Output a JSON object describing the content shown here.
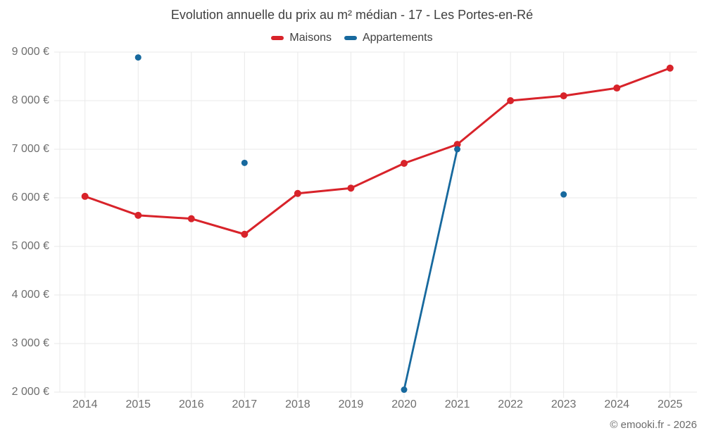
{
  "chart_data": {
    "type": "line",
    "title": "Evolution annuelle du prix au m² médian - 17 - Les Portes-en-Ré",
    "categories": [
      "2014",
      "2015",
      "2016",
      "2017",
      "2018",
      "2019",
      "2020",
      "2021",
      "2022",
      "2023",
      "2024",
      "2025"
    ],
    "series": [
      {
        "name": "Maisons",
        "color": "#d8232a",
        "values": [
          6030,
          5640,
          5570,
          5250,
          6090,
          6200,
          6710,
          7100,
          8000,
          8100,
          8260,
          8670
        ]
      },
      {
        "name": "Appartements",
        "color": "#17699e",
        "values": [
          null,
          8890,
          null,
          6720,
          null,
          null,
          2050,
          7000,
          null,
          6070,
          null,
          null
        ]
      }
    ],
    "xlabel": "",
    "ylabel": "",
    "ylim": [
      2000,
      9000
    ],
    "ytick_step": 1000,
    "ytick_labels": [
      "2 000 €",
      "3 000 €",
      "4 000 €",
      "5 000 €",
      "6 000 €",
      "7 000 €",
      "8 000 €",
      "9 000 €"
    ],
    "grid": true,
    "legend_position": "top",
    "footer": "© emooki.fr - 2026"
  },
  "colors": {
    "grid": "#e9e9e9",
    "axis_text": "#6e6e6e",
    "title_text": "#3f3f3f",
    "footer_text": "#6b6b6b",
    "background": "#ffffff"
  }
}
